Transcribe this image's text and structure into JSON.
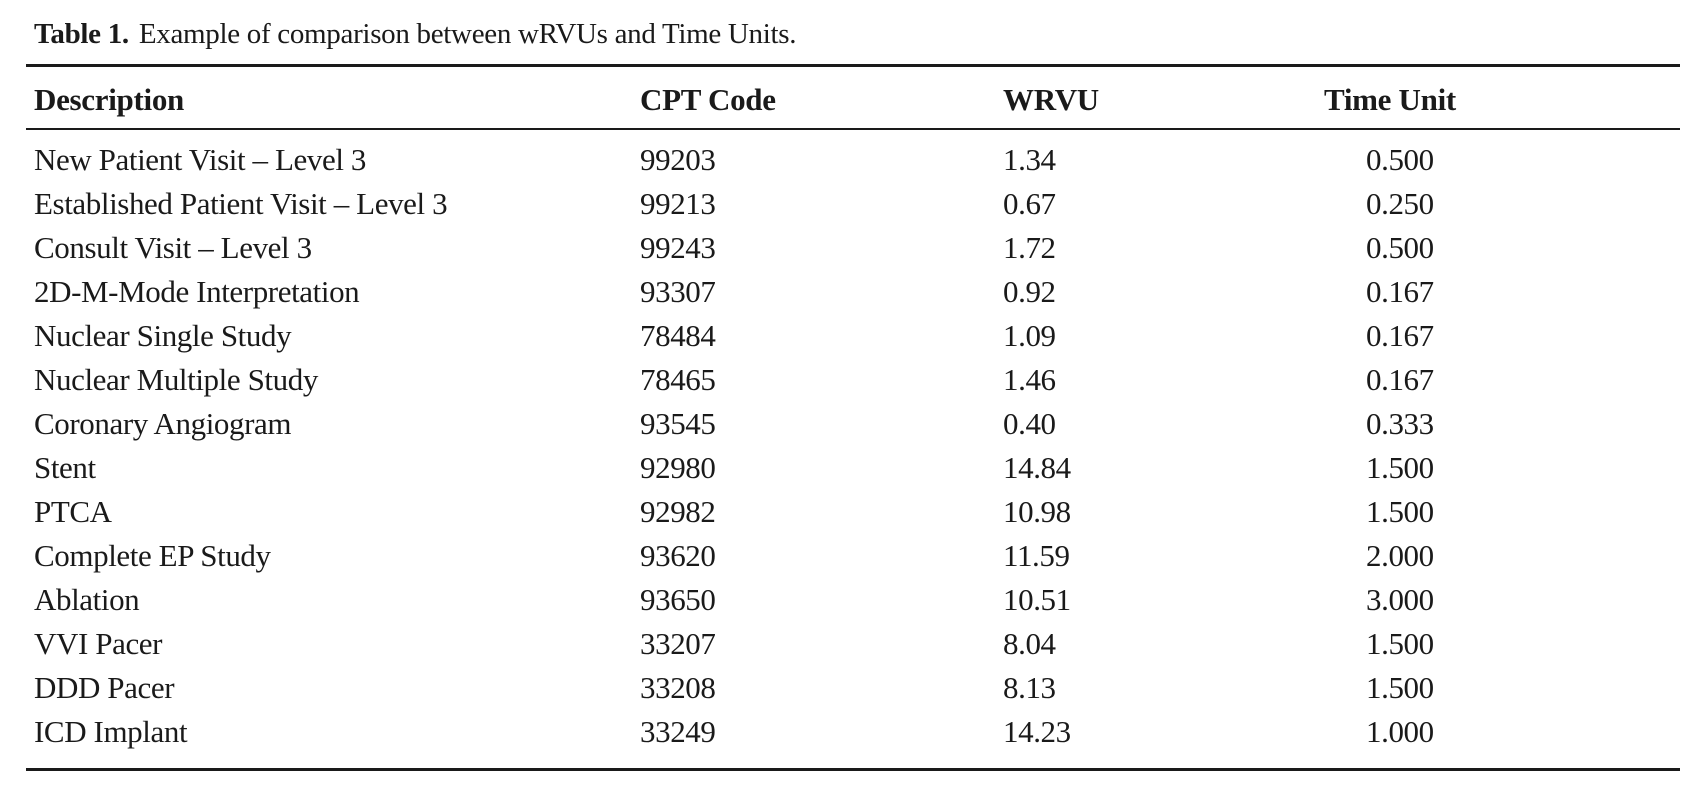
{
  "caption": {
    "label": "Table 1.",
    "text": "Example of comparison between wRVUs and Time Units."
  },
  "table": {
    "headers": {
      "description": "Description",
      "cpt_code": "CPT Code",
      "wrvu": "WRVU",
      "time_unit": "Time Unit"
    },
    "rows": [
      {
        "description": "New Patient Visit – Level 3",
        "cpt": "99203",
        "wrvu": "1.34",
        "time_unit": "0.500"
      },
      {
        "description": "Established Patient Visit – Level 3",
        "cpt": "99213",
        "wrvu": "0.67",
        "time_unit": "0.250"
      },
      {
        "description": "Consult Visit – Level 3",
        "cpt": "99243",
        "wrvu": "1.72",
        "time_unit": "0.500"
      },
      {
        "description": "2D-M-Mode Interpretation",
        "cpt": "93307",
        "wrvu": "0.92",
        "time_unit": "0.167"
      },
      {
        "description": "Nuclear Single Study",
        "cpt": "78484",
        "wrvu": "1.09",
        "time_unit": "0.167"
      },
      {
        "description": "Nuclear Multiple Study",
        "cpt": "78465",
        "wrvu": "1.46",
        "time_unit": "0.167"
      },
      {
        "description": "Coronary Angiogram",
        "cpt": "93545",
        "wrvu": "0.40",
        "time_unit": "0.333"
      },
      {
        "description": "Stent",
        "cpt": "92980",
        "wrvu": "14.84",
        "time_unit": "1.500"
      },
      {
        "description": "PTCA",
        "cpt": "92982",
        "wrvu": "10.98",
        "time_unit": "1.500"
      },
      {
        "description": "Complete EP Study",
        "cpt": "93620",
        "wrvu": "11.59",
        "time_unit": "2.000"
      },
      {
        "description": "Ablation",
        "cpt": "93650",
        "wrvu": "10.51",
        "time_unit": "3.000"
      },
      {
        "description": "VVI Pacer",
        "cpt": "33207",
        "wrvu": "8.04",
        "time_unit": "1.500"
      },
      {
        "description": "DDD Pacer",
        "cpt": "33208",
        "wrvu": "8.13",
        "time_unit": "1.500"
      },
      {
        "description": "ICD Implant",
        "cpt": "33249",
        "wrvu": "14.23",
        "time_unit": "1.000"
      }
    ]
  }
}
